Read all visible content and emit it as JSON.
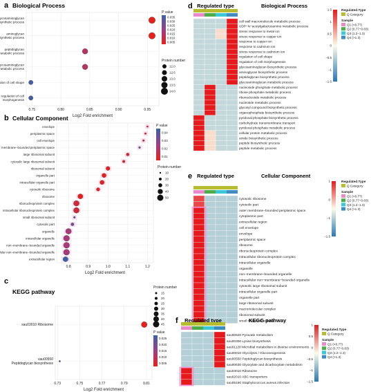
{
  "panels": {
    "a": {
      "letter": "a",
      "title": "Biological Process"
    },
    "b": {
      "letter": "b",
      "title": "Cellular Component"
    },
    "c": {
      "letter": "c",
      "title": "KEGG pathway"
    },
    "d": {
      "letter": "d",
      "title": "Biological Process",
      "header": "Regulated type"
    },
    "e": {
      "letter": "e",
      "title": "Cellular Component",
      "header": "Regulated type"
    },
    "f": {
      "letter": "f",
      "title": "KEGG pathway",
      "header": "Regulated type"
    }
  },
  "chart_data": [
    {
      "id": "a",
      "type": "scatter",
      "xlabel": "Log2 Fold enrichment",
      "xlim": [
        0.74,
        0.97
      ],
      "xticks": [
        0.75,
        0.8,
        0.85,
        0.9,
        0.95
      ],
      "xtick_labels": [
        "0.75",
        "0.80",
        "0.85",
        "0.90",
        "0.95"
      ],
      "categories": [
        "glycosaminoglycan biosynthetic process",
        "aminoglycan biosynthetic process",
        "peptidoglycan metabolic process",
        "glycosaminoglycan metabolic process",
        "regulation of cell shape",
        "regulation of cell morphogenesis"
      ],
      "x": [
        0.958,
        0.958,
        0.842,
        0.842,
        0.748,
        0.748
      ],
      "pvalue": [
        0.005,
        0.005,
        0.015,
        0.015,
        0.034,
        0.034
      ],
      "size": [
        13.8,
        13.8,
        13.0,
        13.0,
        12.2,
        12.2
      ],
      "color_legend": {
        "title": "P value",
        "ticks": [
          "0.035",
          "0.030",
          "0.025",
          "0.020",
          "0.015",
          "0.010",
          "0.005"
        ]
      },
      "size_legend": {
        "title": "Protein number",
        "ticks": [
          "12.0",
          "12.5",
          "13.0",
          "13.5",
          "14.0"
        ]
      }
    },
    {
      "id": "b",
      "type": "scatter",
      "xlabel": "Log2 Fold enrichment",
      "xlim": [
        0.74,
        1.23
      ],
      "xticks": [
        0.8,
        0.9,
        1.0,
        1.1,
        1.2
      ],
      "xtick_labels": [
        "0.8",
        "0.9",
        "1.0",
        "1.1",
        "1.2"
      ],
      "categories": [
        "envelope",
        "periplasmic space",
        "cell envelope",
        "outer membrane−bounded periplasmic space",
        "large ribosomal subunit",
        "cytosolic large ribosomal subunit",
        "ribosomal subunit",
        "organelle part",
        "intracellular organelle part",
        "cytosolic ribosome",
        "ribosome",
        "ribonucleoprotein complex",
        "intracellular ribonucleoprotein complex",
        "small ribosomal subunit",
        "cytosolic part",
        "organelle",
        "intracellular organelle",
        "non−membrane−bounded organelle",
        "intracellular non−membrane−bounded organelle",
        "extracellular region"
      ],
      "x": [
        1.2,
        1.19,
        1.18,
        1.16,
        1.1,
        1.08,
        1.0,
        0.98,
        0.97,
        0.95,
        0.86,
        0.84,
        0.84,
        0.83,
        0.82,
        0.8,
        0.79,
        0.79,
        0.79,
        0.785
      ],
      "pvalue": [
        0.005,
        0.005,
        0.01,
        0.035,
        0.005,
        0.005,
        0.005,
        0.005,
        0.005,
        0.005,
        0.005,
        0.01,
        0.01,
        0.04,
        0.03,
        0.02,
        0.02,
        0.02,
        0.02,
        0.04
      ],
      "size": [
        10,
        11,
        12,
        12,
        20,
        18,
        30,
        33,
        33,
        25,
        40,
        45,
        45,
        12,
        22,
        45,
        48,
        48,
        48,
        40
      ],
      "color_legend": {
        "title": "P value",
        "ticks": [
          "0.04",
          "0.03",
          "0.02",
          "0.01"
        ]
      },
      "size_legend": {
        "title": "Protein number",
        "ticks": [
          "10",
          "20",
          "30",
          "40",
          "50"
        ]
      }
    },
    {
      "id": "c",
      "type": "scatter",
      "xlabel": "Log2 Fold enrichment",
      "xlim": [
        0.728,
        0.815
      ],
      "xticks": [
        0.73,
        0.75,
        0.77,
        0.79,
        0.81
      ],
      "xtick_labels": [
        "0.73",
        "0.75",
        "0.77",
        "0.79",
        "0.81"
      ],
      "categories": [
        "sau03010 Ribosome",
        "sau00550 Peptidoglycan biosynthesis"
      ],
      "x": [
        0.808,
        0.732
      ],
      "pvalue": [
        0.005,
        0.025
      ],
      "size": [
        42,
        12
      ],
      "color_legend": {
        "title": "P value",
        "ticks": [
          "0.025",
          "0.020",
          "0.015",
          "0.010",
          "0.005"
        ]
      },
      "size_legend": {
        "title": "Protein number",
        "ticks": [
          "15",
          "20",
          "25",
          "30",
          "35",
          "40",
          "45"
        ]
      }
    },
    {
      "id": "d",
      "type": "heatmap",
      "columns": [
        "Q1",
        "Q2",
        "Q3",
        "Q4"
      ],
      "column_colors": [
        "#e377c2",
        "#2ca02c",
        "#17becf",
        "#1f77b4"
      ],
      "rows": [
        "cell wall macromolecule metabolic process",
        "UDP−N−acetylgalactosamine metabolic process",
        "stress response to metal ion",
        "stress response to copper ion",
        "response to copper ion",
        "response to cadmium ion",
        "stress response to cadmium ion",
        "regulation of cell shape",
        "regulation of cell morphogenesis",
        "glycosaminoglycan biosynthetic process",
        "aminoglycan biosynthetic process",
        "peptidoglycan biosynthetic process",
        "glycosaminoglycan metabolic process",
        "nucleoside phosphate metabolic process",
        "ribose phosphate metabolic process",
        "ribonucleotide metabolic process",
        "nucleotide metabolic process",
        "glycosyl compound biosynthetic process",
        "organophosphate biosynthetic process",
        "pyridoxal phosphate biosynthetic process",
        "carbohydrate transmembrane transport",
        "pyridoxal phosphate metabolic process",
        "cellular protein metabolic process",
        "amide biosynthetic process",
        "peptide biosynthetic process",
        "peptide metabolic process"
      ],
      "values": [
        [
          -0.4,
          -0.4,
          -0.4,
          1.5
        ],
        [
          -0.4,
          -0.4,
          -0.4,
          1.5
        ],
        [
          -0.4,
          -0.4,
          0.2,
          1.5
        ],
        [
          -0.4,
          -0.4,
          0.2,
          1.5
        ],
        [
          -0.4,
          -0.4,
          -0.4,
          1.5
        ],
        [
          -0.4,
          -0.4,
          -0.4,
          1.5
        ],
        [
          -0.4,
          -0.4,
          -0.4,
          1.5
        ],
        [
          -0.4,
          -0.4,
          -0.4,
          1.5
        ],
        [
          -0.4,
          -0.4,
          -0.4,
          1.5
        ],
        [
          -0.4,
          -0.4,
          -0.4,
          1.5
        ],
        [
          -0.4,
          -0.4,
          -0.4,
          1.5
        ],
        [
          -0.4,
          -0.4,
          -0.4,
          1.5
        ],
        [
          -0.4,
          -0.4,
          -0.4,
          1.5
        ],
        [
          -0.4,
          1.5,
          -0.4,
          -0.4
        ],
        [
          -0.4,
          1.5,
          -0.4,
          -0.4
        ],
        [
          -0.4,
          1.5,
          -0.4,
          -0.4
        ],
        [
          -0.4,
          1.5,
          -0.4,
          -0.4
        ],
        [
          -0.4,
          1.5,
          -0.4,
          -0.4
        ],
        [
          -0.4,
          1.5,
          -0.4,
          -0.4
        ],
        [
          1.5,
          -0.4,
          -0.4,
          -0.4
        ],
        [
          1.5,
          -0.4,
          -0.4,
          -0.4
        ],
        [
          1.5,
          -0.4,
          -0.4,
          -0.4
        ],
        [
          1.5,
          0.2,
          -0.4,
          -0.4
        ],
        [
          1.5,
          0.2,
          -0.4,
          -0.4
        ],
        [
          1.5,
          0.2,
          -0.4,
          -0.4
        ],
        [
          1.5,
          0.2,
          -0.4,
          -0.4
        ]
      ],
      "scale_ticks": [
        "1.5",
        "1",
        "0.5",
        "0",
        "−0.5",
        "−1",
        "−1.5"
      ],
      "legend": {
        "group_title": "Regulated.Type",
        "group_item": "Q Category",
        "sample_title": "Sample",
        "samples": [
          "Q1 (<0.77)",
          "Q2 (0.77−0.83)",
          "Q3 (1.2−1.3)",
          "Q4 (>1.3)"
        ]
      }
    },
    {
      "id": "e",
      "type": "heatmap",
      "columns": [
        "Q1",
        "Q2",
        "Q3",
        "Q4"
      ],
      "column_colors": [
        "#e377c2",
        "#2ca02c",
        "#17becf",
        "#1f77b4"
      ],
      "rows": [
        "cytosolic ribosome",
        "cytosolic part",
        "outer membrane−bounded periplasmic space",
        "cytoplasmic part",
        "extracellular region",
        "cell envelope",
        "envelope",
        "periplasmic space",
        "ribosome",
        "ribonucleoprotein complex",
        "intracellular ribonucleoprotein complex",
        "intracellular organelle",
        "organelle",
        "non−membrane−bounded organelle",
        "intracellular non−membrane−bounded organelle",
        "cytosolic large ribosomal subunit",
        "intracellular organelle part",
        "organelle part",
        "large ribosomal subunit",
        "macromolecular complex",
        "ribosomal subunit",
        "small ribosomal subunit"
      ],
      "values": [
        [
          1.2,
          -0.5,
          -0.5,
          -0.5
        ],
        [
          1.2,
          -0.5,
          -0.5,
          -0.5
        ],
        [
          1.5,
          -0.5,
          -0.5,
          -0.5
        ],
        [
          1.5,
          -0.5,
          -0.5,
          -0.5
        ],
        [
          1.5,
          -0.5,
          -0.5,
          -0.5
        ],
        [
          1.5,
          -0.5,
          -0.5,
          -0.5
        ],
        [
          1.5,
          -0.5,
          -0.5,
          -0.5
        ],
        [
          1.5,
          -0.5,
          -0.5,
          -0.5
        ],
        [
          1.5,
          -0.5,
          -0.5,
          -0.5
        ],
        [
          1.5,
          -0.5,
          -0.5,
          -0.5
        ],
        [
          1.5,
          -0.5,
          -0.5,
          -0.5
        ],
        [
          1.5,
          -0.5,
          -0.5,
          -0.5
        ],
        [
          1.5,
          -0.5,
          -0.5,
          -0.5
        ],
        [
          1.5,
          -0.5,
          -0.5,
          -0.5
        ],
        [
          1.5,
          -0.5,
          -0.5,
          -0.5
        ],
        [
          1.5,
          -0.5,
          -0.5,
          -0.5
        ],
        [
          1.5,
          -0.5,
          -0.5,
          -0.5
        ],
        [
          1.5,
          -0.5,
          -0.5,
          -0.5
        ],
        [
          1.5,
          -0.5,
          -0.5,
          -0.5
        ],
        [
          1.5,
          -0.5,
          -0.5,
          -0.5
        ],
        [
          1.5,
          -0.5,
          -0.5,
          -0.5
        ],
        [
          1.5,
          -0.5,
          -0.5,
          -0.5
        ]
      ],
      "scale_ticks": [
        "1",
        "0",
        "−1",
        "−1.5"
      ],
      "legend": {
        "group_title": "Regulated.Type",
        "group_item": "Q Category",
        "sample_title": "Sample",
        "samples": [
          "Q1 (<0.77)",
          "Q2 (0.77−0.83)",
          "Q3 (1.2−1.3)",
          "Q4 (>1.3)"
        ]
      }
    },
    {
      "id": "f",
      "type": "heatmap",
      "columns": [
        "Q1",
        "Q2",
        "Q3",
        "Q4"
      ],
      "column_colors": [
        "#e377c2",
        "#2ca02c",
        "#17becf",
        "#1f77b4"
      ],
      "rows": [
        "sau00620 Pyruvate metabolism",
        "sau00300 Lysine biosynthesis",
        "sau01120 Microbial metabolism in diverse environments",
        "sau00010 Glycolysis / Gluconeogenesis",
        "sau00550 Peptidoglycan biosynthesis",
        "sau00630 Glyoxylate and dicarboxylate metabolism",
        "sau03010 Ribosome",
        "sau02010 ABC transporters",
        "sau05150 Staphylococcus aureus infection"
      ],
      "values": [
        [
          -0.5,
          -0.5,
          -0.5,
          1.5
        ],
        [
          -0.5,
          -0.5,
          -0.5,
          1.5
        ],
        [
          -0.5,
          -0.5,
          -0.5,
          1.5
        ],
        [
          -0.5,
          -0.5,
          -0.5,
          1.5
        ],
        [
          -0.5,
          -0.5,
          -0.5,
          1.5
        ],
        [
          -0.5,
          -0.5,
          -0.5,
          1.5
        ],
        [
          1.5,
          -0.5,
          -0.5,
          -0.5
        ],
        [
          1.5,
          -0.5,
          -0.5,
          -0.5
        ],
        [
          1.5,
          -0.5,
          -0.5,
          -0.5
        ]
      ],
      "scale_ticks": [
        "1",
        "0.5",
        "0",
        "−0.5",
        "−1",
        "−1.5"
      ],
      "legend": {
        "group_title": "Regulated.Type",
        "group_item": "Q Category",
        "sample_title": "Sample",
        "samples": [
          "Q1 (<0.77)",
          "Q2 (0.77−0.83)",
          "Q3 (1.2−1.3)",
          "Q4 (>1.3)"
        ]
      }
    }
  ]
}
